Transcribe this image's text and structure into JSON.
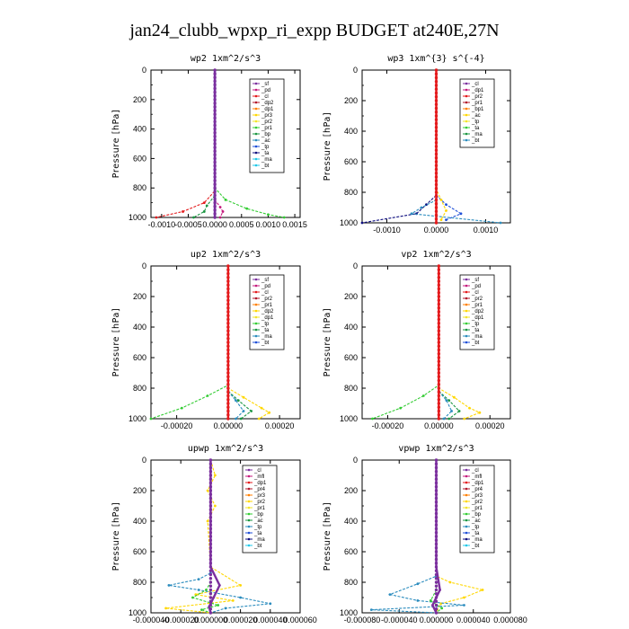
{
  "figure_title": "jan24_clubb_wpxp_ri_expp  BUDGET at240E,27N",
  "colors": {
    "red": "#e41a1c",
    "darkred": "#b2182b",
    "orange": "#ff7f00",
    "gold": "#ffd700",
    "yellow": "#f2e529",
    "green": "#33cc33",
    "darkgreen": "#1a9641",
    "blue": "#1f4fd8",
    "navy": "#101080",
    "teal": "#2b8cbe",
    "cyan": "#20c8e8",
    "purple": "#7b2f9e",
    "magenta": "#c51b7d"
  },
  "chart_data": [
    {
      "type": "line",
      "title": "wp2   1xm^2/s^3",
      "ylabel": "Pressure [hPa]",
      "xlim": [
        -0.0012,
        0.0016
      ],
      "ylim": [
        1000,
        0
      ],
      "xticks": [
        -0.001,
        -0.0005,
        0.0,
        0.0005,
        0.001,
        0.0015
      ],
      "xtick_labels": [
        "-0.0010",
        "-0.0005",
        "0.0000",
        "0.0005",
        "0.0010",
        "0.0015"
      ],
      "yticks": [
        0,
        200,
        400,
        600,
        800,
        1000
      ],
      "legend": [
        "_sf",
        "_pd",
        "_cl",
        "_dp2",
        "_dp1",
        "_pr3",
        "_pr2",
        "_pr1",
        "_bp",
        "_ac",
        "_tp",
        "_ta",
        "_ma",
        "_bt"
      ],
      "series": [
        {
          "name": "_pr1",
          "color": "#33cc33",
          "x": [
            0,
            0,
            0.0002,
            0.0006,
            0.001,
            0.0013
          ],
          "y": [
            0,
            800,
            880,
            940,
            980,
            1000
          ]
        },
        {
          "name": "_pd",
          "color": "#e41a1c",
          "x": [
            0,
            0,
            -0.0002,
            -0.0006,
            -0.0011
          ],
          "y": [
            0,
            820,
            900,
            960,
            1000
          ]
        },
        {
          "name": "_dp2",
          "color": "#1a9641",
          "x": [
            0,
            0,
            -0.00015,
            -0.0002,
            -0.0004
          ],
          "y": [
            0,
            850,
            920,
            960,
            1000
          ]
        },
        {
          "name": "_bp",
          "color": "#c51b7d",
          "x": [
            0,
            0,
            0.0001,
            0.00015,
            0.0001
          ],
          "y": [
            0,
            880,
            930,
            960,
            1000
          ]
        },
        {
          "name": "_cl",
          "color": "#1f4fd8",
          "x": [
            0,
            0,
            0,
            0
          ],
          "y": [
            0,
            300,
            700,
            1000
          ]
        },
        {
          "name": "_bt",
          "color": "#7b2f9e",
          "x": [
            0,
            0,
            0,
            0
          ],
          "y": [
            0,
            300,
            700,
            1000
          ]
        }
      ]
    },
    {
      "type": "line",
      "title": "wp3   1xm^{3} s^{-4}",
      "ylabel": "Pressure [hPa]",
      "xlim": [
        -0.0015,
        0.0015
      ],
      "ylim": [
        1000,
        0
      ],
      "xticks": [
        -0.001,
        0.0,
        0.001
      ],
      "xtick_labels": [
        "-0.0010",
        "0.0000",
        "0.0010"
      ],
      "yticks": [
        0,
        200,
        400,
        600,
        800,
        1000
      ],
      "legend": [
        "_cl",
        "_dp1",
        "_pr2",
        "_pr1",
        "_bp1",
        "_ac",
        "_tp",
        "_ta",
        "_ma",
        "_bt"
      ],
      "series": [
        {
          "name": "_ta",
          "color": "#101080",
          "x": [
            0,
            0,
            -0.0002,
            -0.0004,
            -0.0015
          ],
          "y": [
            0,
            820,
            880,
            940,
            1000
          ]
        },
        {
          "name": "_tp",
          "color": "#1f4fd8",
          "x": [
            0,
            0,
            0.0002,
            0.0005,
            0.0002
          ],
          "y": [
            0,
            820,
            880,
            940,
            980
          ]
        },
        {
          "name": "_ma",
          "color": "#2b8cbe",
          "x": [
            0,
            0,
            -0.0003,
            -0.0005,
            0.0013
          ],
          "y": [
            0,
            850,
            900,
            940,
            1000
          ]
        },
        {
          "name": "_pr1",
          "color": "#ffd700",
          "x": [
            0,
            0,
            0.0001,
            0.0002,
            0.0001
          ],
          "y": [
            0,
            780,
            850,
            920,
            980
          ]
        },
        {
          "name": "_cl",
          "color": "#e41a1c",
          "x": [
            0,
            0,
            0,
            0
          ],
          "y": [
            0,
            300,
            700,
            1000
          ]
        }
      ]
    },
    {
      "type": "line",
      "title": "up2   1xm^2/s^3",
      "ylabel": "Pressure [hPa]",
      "xlim": [
        -0.0003,
        0.00028
      ],
      "ylim": [
        1000,
        0
      ],
      "xticks": [
        -0.0002,
        0.0,
        0.0002
      ],
      "xtick_labels": [
        "-0.00020",
        "0.00000",
        "0.00020"
      ],
      "yticks": [
        0,
        200,
        400,
        600,
        800,
        1000
      ],
      "legend": [
        "_sf",
        "_pd",
        "_cl",
        "_pr2",
        "_pr1",
        "_dp2",
        "_dp1",
        "_tp",
        "_ta",
        "_ma",
        "_bt"
      ],
      "series": [
        {
          "name": "_pr1",
          "color": "#33cc33",
          "x": [
            0,
            0,
            -8e-05,
            -0.00018,
            -0.0003
          ],
          "y": [
            0,
            780,
            850,
            930,
            1000
          ]
        },
        {
          "name": "_pr2",
          "color": "#ffd700",
          "x": [
            0,
            0,
            6e-05,
            0.00013,
            0.00016,
            0.00012
          ],
          "y": [
            0,
            800,
            860,
            930,
            960,
            1000
          ]
        },
        {
          "name": "_dp1",
          "color": "#1a9641",
          "x": [
            0,
            0,
            4e-05,
            9e-05,
            5e-05
          ],
          "y": [
            0,
            820,
            880,
            950,
            1000
          ]
        },
        {
          "name": "_tp",
          "color": "#2b8cbe",
          "x": [
            0,
            0,
            3e-05,
            6e-05,
            3e-05
          ],
          "y": [
            0,
            820,
            880,
            950,
            1000
          ]
        },
        {
          "name": "_cl",
          "color": "#e41a1c",
          "x": [
            0,
            0,
            0,
            0
          ],
          "y": [
            0,
            300,
            700,
            1000
          ]
        }
      ]
    },
    {
      "type": "line",
      "title": "vp2   1xm^2/s^3",
      "ylabel": "Pressure [hPa]",
      "xlim": [
        -0.0003,
        0.00028
      ],
      "ylim": [
        1000,
        0
      ],
      "xticks": [
        -0.0002,
        0.0,
        0.0002
      ],
      "xtick_labels": [
        "-0.00020",
        "0.00000",
        "0.00020"
      ],
      "yticks": [
        0,
        200,
        400,
        600,
        800,
        1000
      ],
      "legend": [
        "_sf",
        "_pd",
        "_cl",
        "_pr2",
        "_pr1",
        "_dp2",
        "_dp1",
        "_tp",
        "_ta",
        "_ma",
        "_bt"
      ],
      "series": [
        {
          "name": "_pr1",
          "color": "#33cc33",
          "x": [
            0,
            0,
            -6e-05,
            -0.00015,
            -0.00026
          ],
          "y": [
            0,
            780,
            850,
            930,
            1000
          ]
        },
        {
          "name": "_pr2",
          "color": "#ffd700",
          "x": [
            0,
            0,
            6e-05,
            0.00012,
            0.00016,
            0.0001
          ],
          "y": [
            0,
            800,
            860,
            930,
            960,
            1000
          ]
        },
        {
          "name": "_dp1",
          "color": "#1a9641",
          "x": [
            0,
            0,
            4e-05,
            8e-05,
            4e-05
          ],
          "y": [
            0,
            820,
            880,
            950,
            1000
          ]
        },
        {
          "name": "_tp",
          "color": "#2b8cbe",
          "x": [
            0,
            0,
            3e-05,
            5e-05,
            2e-05
          ],
          "y": [
            0,
            820,
            880,
            950,
            1000
          ]
        },
        {
          "name": "_cl",
          "color": "#e41a1c",
          "x": [
            0,
            0,
            0,
            0
          ],
          "y": [
            0,
            300,
            700,
            1000
          ]
        }
      ]
    },
    {
      "type": "line",
      "title": "upwp   1xm^2/s^3",
      "ylabel": "Pressure [hPa]",
      "xlim": [
        -4e-05,
        6e-05
      ],
      "ylim": [
        1000,
        0
      ],
      "xticks": [
        -4e-05,
        -2e-05,
        0.0,
        2e-05,
        4e-05,
        6e-05
      ],
      "xtick_labels": [
        "-0.000040",
        "-0.000020",
        "0.000000",
        "0.000020",
        "0.000040",
        "0.000060"
      ],
      "yticks": [
        0,
        200,
        400,
        600,
        800,
        1000
      ],
      "legend": [
        "_cl",
        "_mfl",
        "_dp1",
        "_pr4",
        "_pr3",
        "_pr2",
        "_pr1",
        "_bp",
        "_ac",
        "_tp",
        "_ta",
        "_ma",
        "_bt"
      ],
      "series": [
        {
          "name": "_pr2",
          "color": "#ffd700",
          "x": [
            0,
            3e-06,
            -2e-06,
            3e-06,
            -2e-06,
            0,
            2e-05,
            -1e-05,
            1.5e-05,
            -3e-05,
            0
          ],
          "y": [
            0,
            100,
            200,
            300,
            400,
            700,
            820,
            880,
            920,
            970,
            1000
          ]
        },
        {
          "name": "_ma",
          "color": "#2b8cbe",
          "x": [
            0,
            0,
            -8e-06,
            -2.8e-05,
            -8e-06,
            2e-05,
            4e-05,
            1e-05,
            0
          ],
          "y": [
            0,
            740,
            780,
            820,
            850,
            900,
            940,
            970,
            1000
          ]
        },
        {
          "name": "_pr1",
          "color": "#33cc33",
          "x": [
            0,
            0,
            -3e-06,
            -1.2e-05,
            5e-06,
            -6e-06,
            0
          ],
          "y": [
            0,
            800,
            850,
            900,
            950,
            980,
            1000
          ]
        },
        {
          "name": "_cl",
          "color": "#7b2f9e",
          "x": [
            0,
            0,
            6e-06,
            2e-06,
            -1e-06,
            0
          ],
          "y": [
            0,
            700,
            820,
            900,
            960,
            1000
          ]
        }
      ]
    },
    {
      "type": "line",
      "title": "vpwp   1xm^2/s^3",
      "ylabel": "Pressure [hPa]",
      "xlim": [
        -8e-05,
        8e-05
      ],
      "ylim": [
        1000,
        0
      ],
      "xticks": [
        -8e-05,
        -4e-05,
        0.0,
        4e-05,
        8e-05
      ],
      "xtick_labels": [
        "-0.000080",
        "-0.000040",
        "0.000000",
        "0.000040",
        "0.000080"
      ],
      "yticks": [
        0,
        200,
        400,
        600,
        800,
        1000
      ],
      "legend": [
        "_cl",
        "_mfl",
        "_dp1",
        "_pr4",
        "_pr3",
        "_pr2",
        "_pr1",
        "_bp",
        "_ac",
        "_tp",
        "_ta",
        "_ma",
        "_bt"
      ],
      "series": [
        {
          "name": "_pr2",
          "color": "#ffd700",
          "x": [
            0,
            0,
            1.5e-05,
            5e-05,
            3e-05,
            5e-06,
            0
          ],
          "y": [
            0,
            760,
            800,
            850,
            900,
            940,
            1000
          ]
        },
        {
          "name": "_ma",
          "color": "#2b8cbe",
          "x": [
            0,
            0,
            -2e-05,
            -5e-05,
            -2e-05,
            3e-05,
            -7e-05,
            0
          ],
          "y": [
            0,
            760,
            810,
            880,
            920,
            950,
            980,
            1000
          ]
        },
        {
          "name": "_pr1",
          "color": "#33cc33",
          "x": [
            0,
            0,
            -6e-06,
            6e-06,
            0
          ],
          "y": [
            0,
            850,
            920,
            970,
            1000
          ]
        },
        {
          "name": "_cl",
          "color": "#7b2f9e",
          "x": [
            0,
            0,
            4e-06,
            -4e-06,
            0
          ],
          "y": [
            0,
            700,
            850,
            950,
            1000
          ]
        }
      ]
    }
  ]
}
